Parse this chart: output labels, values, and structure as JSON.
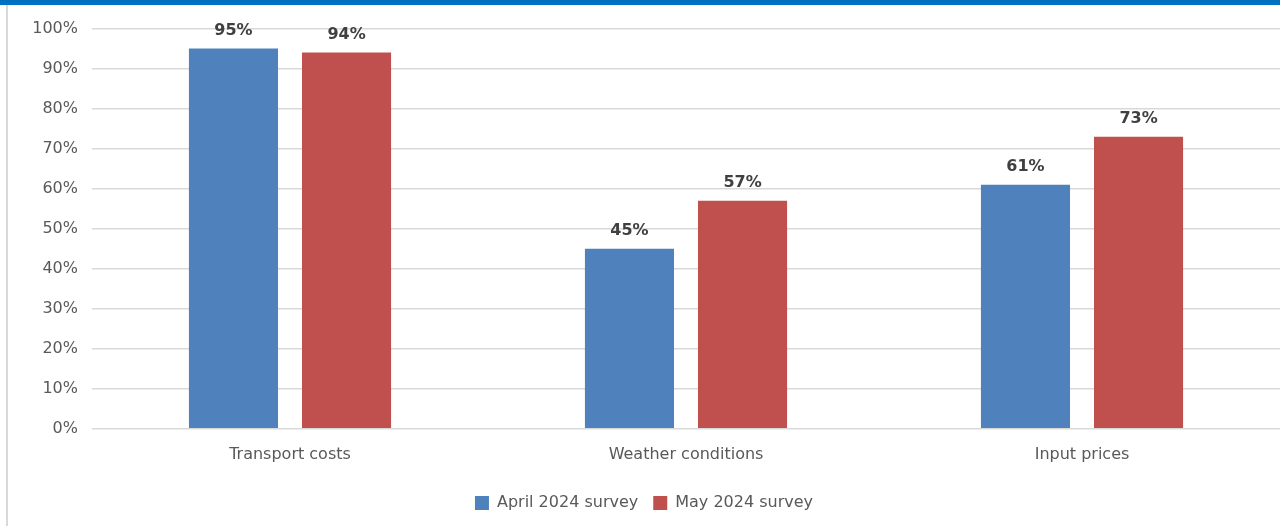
{
  "chart_data": {
    "type": "bar",
    "categories": [
      "Transport costs",
      "Weather conditions",
      "Input prices"
    ],
    "series": [
      {
        "name": "April 2024 survey",
        "color": "#4f81bd",
        "values": [
          95,
          45,
          61
        ],
        "value_labels": [
          "95%",
          "45%",
          "61%"
        ]
      },
      {
        "name": "May 2024 survey",
        "color": "#c0504d",
        "values": [
          94,
          57,
          73
        ],
        "value_labels": [
          "94%",
          "57%",
          "73%"
        ]
      }
    ],
    "ylim": [
      0,
      100
    ],
    "yticks": [
      {
        "value": 0,
        "label": "0%"
      },
      {
        "value": 10,
        "label": "10%"
      },
      {
        "value": 20,
        "label": "20%"
      },
      {
        "value": 30,
        "label": "30%"
      },
      {
        "value": 40,
        "label": "40%"
      },
      {
        "value": 50,
        "label": "50%"
      },
      {
        "value": 60,
        "label": "60%"
      },
      {
        "value": 70,
        "label": "70%"
      },
      {
        "value": 80,
        "label": "80%"
      },
      {
        "value": 90,
        "label": "90%"
      },
      {
        "value": 100,
        "label": "100%"
      }
    ],
    "grid": "y",
    "legend": "bottom"
  }
}
